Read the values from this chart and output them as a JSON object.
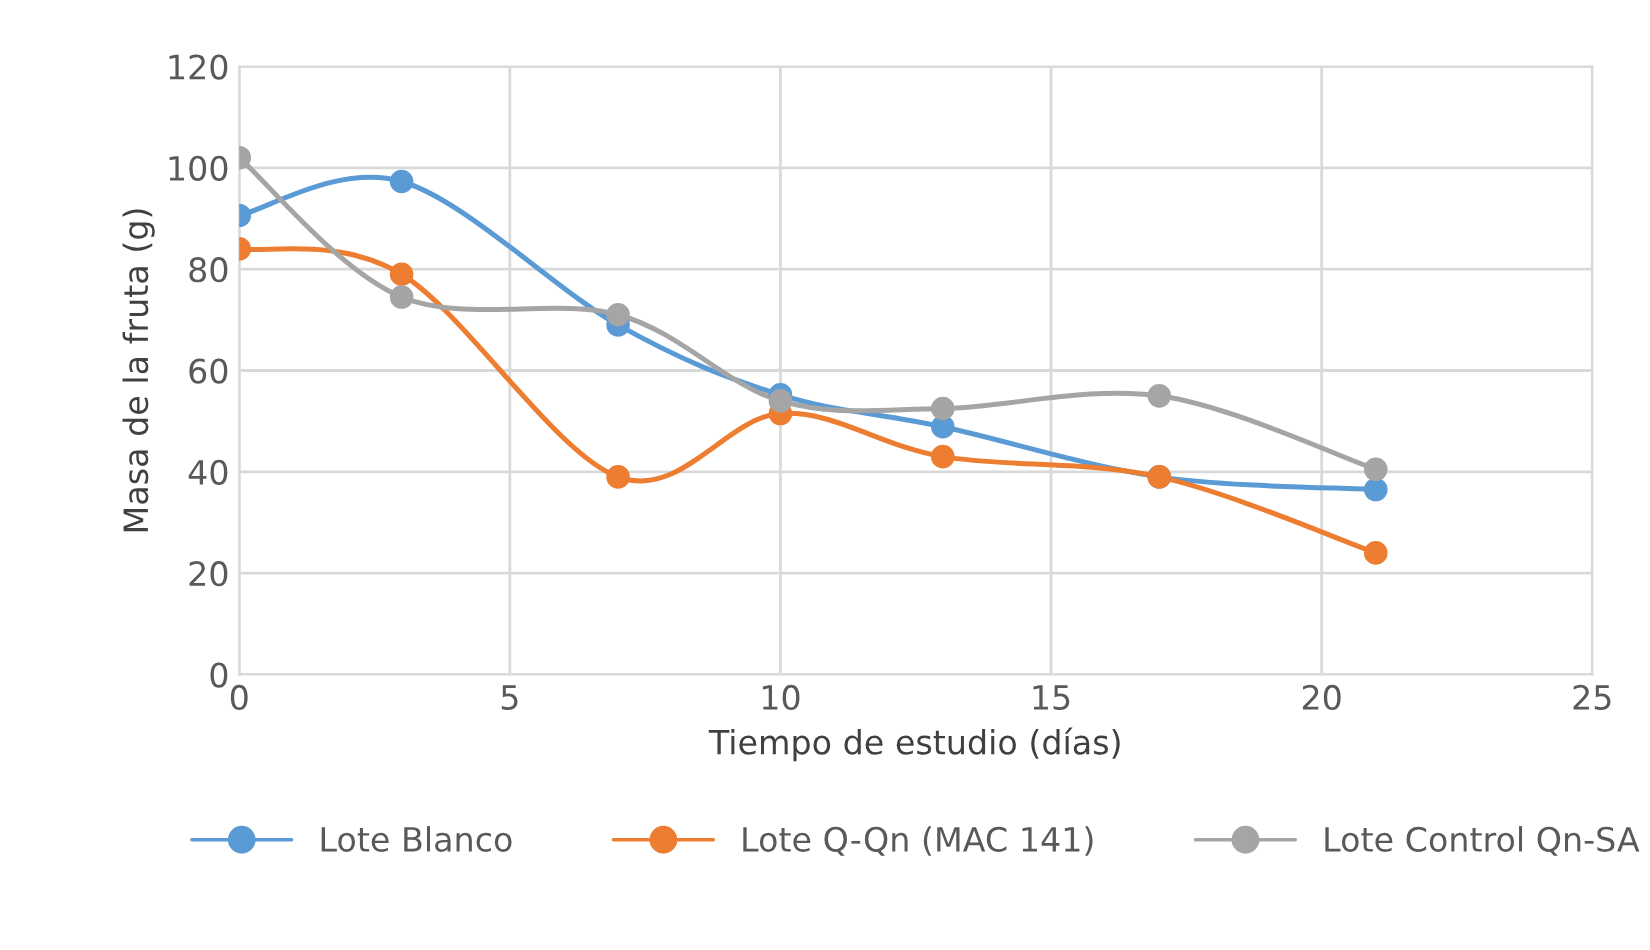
{
  "chart_data": {
    "type": "line",
    "xlabel": "Tiempo de estudio (días)",
    "ylabel": "Masa de la fruta (g)",
    "x": [
      0,
      3,
      7,
      10,
      13,
      17,
      21
    ],
    "series": [
      {
        "name": "Lote Blanco",
        "color": "#5b9bd5",
        "values": [
          90.6,
          97.3,
          69,
          55.2,
          48.9,
          39,
          36.5
        ]
      },
      {
        "name": "Lote Q-Qn (MAC 141)",
        "color": "#ed7d31",
        "values": [
          84,
          79,
          39,
          51.5,
          43,
          39,
          24
        ]
      },
      {
        "name": "Lote Control Qn-SA",
        "color": "#a5a5a5",
        "values": [
          102,
          74.5,
          71,
          54,
          52.5,
          55,
          40.5
        ]
      }
    ],
    "xlim": [
      0,
      25
    ],
    "xticks": [
      0,
      5,
      10,
      15,
      20,
      25
    ],
    "ylim": [
      0,
      120
    ],
    "yticks": [
      0,
      20,
      40,
      60,
      80,
      100,
      120
    ],
    "grid": true,
    "legend": "bottom",
    "marker": "circle",
    "line_style": "solid"
  }
}
